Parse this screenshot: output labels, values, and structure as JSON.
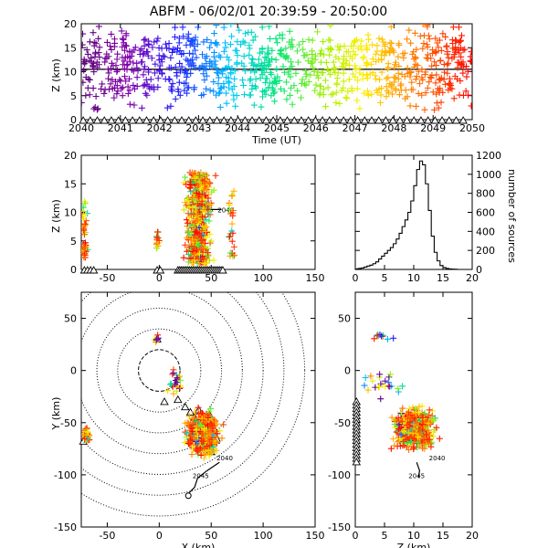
{
  "title": "ABFM - 06/02/01 20:39:59 - 20:50:00",
  "chart_data": [
    {
      "id": "altitude-time",
      "type": "scatter",
      "xlabel": "Time (UT)",
      "ylabel": "Z (km)",
      "xlim": [
        2040,
        2050
      ],
      "ylim": [
        0,
        20
      ],
      "xticks": [
        "2040",
        "2041",
        "2042",
        "2043",
        "2044",
        "2045",
        "2046",
        "2047",
        "2048",
        "2049",
        "2050"
      ],
      "yticks": [
        "0",
        "5",
        "10",
        "15",
        "20"
      ],
      "reference_line_z": 10.5,
      "color_scale": "time rainbow (purple 2040 to red 2050)",
      "source_band_z": [
        5,
        17
      ]
    },
    {
      "id": "altitude-x",
      "type": "scatter",
      "xlabel": "",
      "ylabel": "Z (km)",
      "xlim": [
        -75,
        150
      ],
      "ylim": [
        0,
        20
      ],
      "xticks": [
        "-50",
        "0",
        "50",
        "100",
        "150"
      ],
      "yticks": [
        "0",
        "5",
        "10",
        "15",
        "20"
      ],
      "track_labels": [
        "2045",
        "2040"
      ]
    },
    {
      "id": "height-histogram",
      "type": "line",
      "xlabel": "",
      "ylabel": "number of sources",
      "xlim": [
        0,
        20
      ],
      "ylim": [
        0,
        1200
      ],
      "xticks": [
        "0",
        "5",
        "10",
        "15",
        "20"
      ],
      "yticks": [
        "0",
        "200",
        "400",
        "600",
        "800",
        "1000",
        "1200"
      ],
      "x": [
        0.5,
        1,
        1.5,
        2,
        2.5,
        3,
        3.5,
        4,
        4.5,
        5,
        5.5,
        6,
        6.5,
        7,
        7.5,
        8,
        8.5,
        9,
        9.5,
        10,
        10.5,
        11,
        11.5,
        12,
        12.5,
        13,
        13.5,
        14,
        14.5,
        15,
        15.5,
        16,
        16.5,
        17,
        17.5,
        18
      ],
      "values": [
        5,
        10,
        15,
        25,
        35,
        45,
        60,
        80,
        110,
        140,
        170,
        200,
        230,
        270,
        320,
        380,
        450,
        520,
        600,
        720,
        880,
        1050,
        1140,
        1100,
        900,
        620,
        350,
        180,
        90,
        40,
        20,
        10,
        5,
        3,
        2,
        0
      ]
    },
    {
      "id": "plan-view",
      "type": "scatter",
      "xlabel": "X (km)",
      "ylabel": "Y (km)",
      "xlim": [
        -75,
        150
      ],
      "ylim": [
        -150,
        75
      ],
      "xticks": [
        "-50",
        "0",
        "50",
        "100",
        "150"
      ],
      "yticks": [
        "-150",
        "-100",
        "-50",
        "0",
        "50"
      ],
      "range_rings_km": [
        20,
        40,
        60,
        80,
        100,
        120,
        140
      ],
      "track_labels": [
        "2040",
        "2045"
      ]
    },
    {
      "id": "y-z-view",
      "type": "scatter",
      "xlabel": "Z (km)",
      "ylabel": "",
      "xlim": [
        0,
        20
      ],
      "ylim": [
        -150,
        75
      ],
      "xticks": [
        "0",
        "5",
        "10",
        "15",
        "20"
      ],
      "yticks": [
        "-150",
        "-100",
        "-50",
        "0",
        "50"
      ],
      "track_labels": [
        "2040",
        "2045"
      ]
    }
  ]
}
